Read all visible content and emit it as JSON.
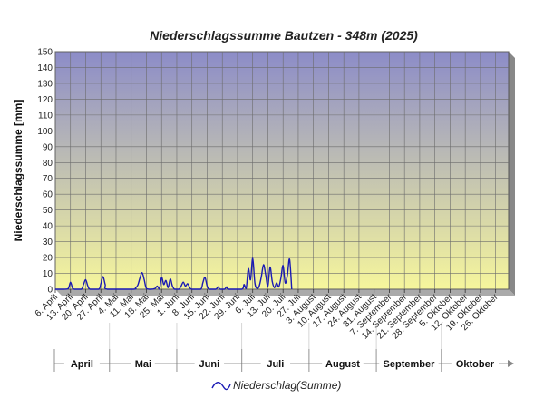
{
  "chart_data": {
    "type": "line",
    "title": "Niederschlagssumme Bautzen - 348m (2025)",
    "ylabel": "Niederschlagssumme [mm]",
    "xlabel": "",
    "ylim": [
      0,
      150
    ],
    "y_ticks": [
      0,
      10,
      20,
      30,
      40,
      50,
      60,
      70,
      80,
      90,
      100,
      110,
      120,
      130,
      140,
      150
    ],
    "x_range": [
      "2025-04-06",
      "2025-11-01"
    ],
    "x_tick_labels": [
      {
        "date": "2025-04-06",
        "label": "6. April"
      },
      {
        "date": "2025-04-13",
        "label": "13. April"
      },
      {
        "date": "2025-04-20",
        "label": "20. April"
      },
      {
        "date": "2025-04-27",
        "label": "27. April"
      },
      {
        "date": "2025-05-04",
        "label": "4. Mai"
      },
      {
        "date": "2025-05-11",
        "label": "11. Mai"
      },
      {
        "date": "2025-05-18",
        "label": "18. Mai"
      },
      {
        "date": "2025-05-25",
        "label": "25. Mai"
      },
      {
        "date": "2025-06-01",
        "label": "1. Juni"
      },
      {
        "date": "2025-06-08",
        "label": "8. Juni"
      },
      {
        "date": "2025-06-15",
        "label": "15. Juni"
      },
      {
        "date": "2025-06-22",
        "label": "22. Juni"
      },
      {
        "date": "2025-06-29",
        "label": "29. Juni"
      },
      {
        "date": "2025-07-06",
        "label": "6. Juli"
      },
      {
        "date": "2025-07-13",
        "label": "13. Juli"
      },
      {
        "date": "2025-07-20",
        "label": "20. Juli"
      },
      {
        "date": "2025-07-27",
        "label": "27. Juli"
      },
      {
        "date": "2025-08-03",
        "label": "3. August"
      },
      {
        "date": "2025-08-10",
        "label": "10. August"
      },
      {
        "date": "2025-08-17",
        "label": "17. August"
      },
      {
        "date": "2025-08-24",
        "label": "24. August"
      },
      {
        "date": "2025-08-31",
        "label": "31. August"
      },
      {
        "date": "2025-09-07",
        "label": "7. September"
      },
      {
        "date": "2025-09-14",
        "label": "14. September"
      },
      {
        "date": "2025-09-21",
        "label": "21. September"
      },
      {
        "date": "2025-09-28",
        "label": "28. September"
      },
      {
        "date": "2025-10-05",
        "label": "5. Oktober"
      },
      {
        "date": "2025-10-12",
        "label": "12. Oktober"
      },
      {
        "date": "2025-10-19",
        "label": "19. Oktober"
      },
      {
        "date": "2025-10-26",
        "label": "26. Oktober"
      }
    ],
    "months": [
      {
        "label": "April",
        "start": "2025-04-01",
        "end": "2025-05-01"
      },
      {
        "label": "Mai",
        "start": "2025-05-01",
        "end": "2025-06-01"
      },
      {
        "label": "Juni",
        "start": "2025-06-01",
        "end": "2025-07-01"
      },
      {
        "label": "Juli",
        "start": "2025-07-01",
        "end": "2025-08-01"
      },
      {
        "label": "August",
        "start": "2025-08-01",
        "end": "2025-09-01"
      },
      {
        "label": "September",
        "start": "2025-09-01",
        "end": "2025-10-01"
      },
      {
        "label": "Oktober",
        "start": "2025-10-01",
        "end": "2025-11-01"
      }
    ],
    "series": [
      {
        "name": "Niederschlag(Summe)",
        "color": "#1a1ab4",
        "points": [
          {
            "date": "2025-04-06",
            "value": 0
          },
          {
            "date": "2025-04-10",
            "value": 0
          },
          {
            "date": "2025-04-12",
            "value": 0.5
          },
          {
            "date": "2025-04-13",
            "value": 4.5
          },
          {
            "date": "2025-04-14",
            "value": 0.5
          },
          {
            "date": "2025-04-15",
            "value": 0
          },
          {
            "date": "2025-04-18",
            "value": 0
          },
          {
            "date": "2025-04-19",
            "value": 3
          },
          {
            "date": "2025-04-20",
            "value": 6
          },
          {
            "date": "2025-04-21",
            "value": 2
          },
          {
            "date": "2025-04-22",
            "value": 0
          },
          {
            "date": "2025-04-26",
            "value": 0
          },
          {
            "date": "2025-04-27",
            "value": 3.5
          },
          {
            "date": "2025-04-28",
            "value": 8
          },
          {
            "date": "2025-04-29",
            "value": 3
          },
          {
            "date": "2025-04-30",
            "value": 0
          },
          {
            "date": "2025-05-12",
            "value": 0
          },
          {
            "date": "2025-05-13",
            "value": 1
          },
          {
            "date": "2025-05-14",
            "value": 2.5
          },
          {
            "date": "2025-05-15",
            "value": 7
          },
          {
            "date": "2025-05-16",
            "value": 10.5
          },
          {
            "date": "2025-05-17",
            "value": 6
          },
          {
            "date": "2025-05-18",
            "value": 0.5
          },
          {
            "date": "2025-05-20",
            "value": 0
          },
          {
            "date": "2025-05-22",
            "value": 0.5
          },
          {
            "date": "2025-05-23",
            "value": 2
          },
          {
            "date": "2025-05-24",
            "value": 0
          },
          {
            "date": "2025-05-25",
            "value": 7.5
          },
          {
            "date": "2025-05-26",
            "value": 3
          },
          {
            "date": "2025-05-27",
            "value": 5.5
          },
          {
            "date": "2025-05-28",
            "value": 1
          },
          {
            "date": "2025-05-29",
            "value": 6.5
          },
          {
            "date": "2025-05-30",
            "value": 2
          },
          {
            "date": "2025-05-31",
            "value": 0
          },
          {
            "date": "2025-06-02",
            "value": 0
          },
          {
            "date": "2025-06-03",
            "value": 2
          },
          {
            "date": "2025-06-04",
            "value": 4.5
          },
          {
            "date": "2025-06-05",
            "value": 2
          },
          {
            "date": "2025-06-06",
            "value": 3.5
          },
          {
            "date": "2025-06-07",
            "value": 1
          },
          {
            "date": "2025-06-08",
            "value": 0
          },
          {
            "date": "2025-06-12",
            "value": 0
          },
          {
            "date": "2025-06-13",
            "value": 4
          },
          {
            "date": "2025-06-14",
            "value": 7.5
          },
          {
            "date": "2025-06-15",
            "value": 2
          },
          {
            "date": "2025-06-16",
            "value": 0
          },
          {
            "date": "2025-06-19",
            "value": 0
          },
          {
            "date": "2025-06-20",
            "value": 1.5
          },
          {
            "date": "2025-06-21",
            "value": 0
          },
          {
            "date": "2025-06-23",
            "value": 0
          },
          {
            "date": "2025-06-24",
            "value": 1.5
          },
          {
            "date": "2025-06-25",
            "value": 0
          },
          {
            "date": "2025-07-01",
            "value": 0
          },
          {
            "date": "2025-07-02",
            "value": 3
          },
          {
            "date": "2025-07-03",
            "value": 0.5
          },
          {
            "date": "2025-07-04",
            "value": 13
          },
          {
            "date": "2025-07-05",
            "value": 6
          },
          {
            "date": "2025-07-06",
            "value": 19.5
          },
          {
            "date": "2025-07-07",
            "value": 4
          },
          {
            "date": "2025-07-08",
            "value": 0.5
          },
          {
            "date": "2025-07-09",
            "value": 2
          },
          {
            "date": "2025-07-10",
            "value": 8
          },
          {
            "date": "2025-07-11",
            "value": 15.5
          },
          {
            "date": "2025-07-12",
            "value": 9
          },
          {
            "date": "2025-07-13",
            "value": 2
          },
          {
            "date": "2025-07-14",
            "value": 14
          },
          {
            "date": "2025-07-15",
            "value": 5
          },
          {
            "date": "2025-07-16",
            "value": 1
          },
          {
            "date": "2025-07-17",
            "value": 4
          },
          {
            "date": "2025-07-18",
            "value": 1.5
          },
          {
            "date": "2025-07-19",
            "value": 7
          },
          {
            "date": "2025-07-20",
            "value": 15
          },
          {
            "date": "2025-07-21",
            "value": 4
          },
          {
            "date": "2025-07-22",
            "value": 9
          },
          {
            "date": "2025-07-23",
            "value": 19
          },
          {
            "date": "2025-07-24",
            "value": 0
          }
        ]
      }
    ],
    "grid": true,
    "legend": "bottom-center",
    "colors": {
      "plot_top": "#8c8cc8",
      "plot_bottom": "#f6f69c",
      "grid": "#6c6c6c",
      "frame": "#555555",
      "line": "#1a1ab4"
    }
  }
}
